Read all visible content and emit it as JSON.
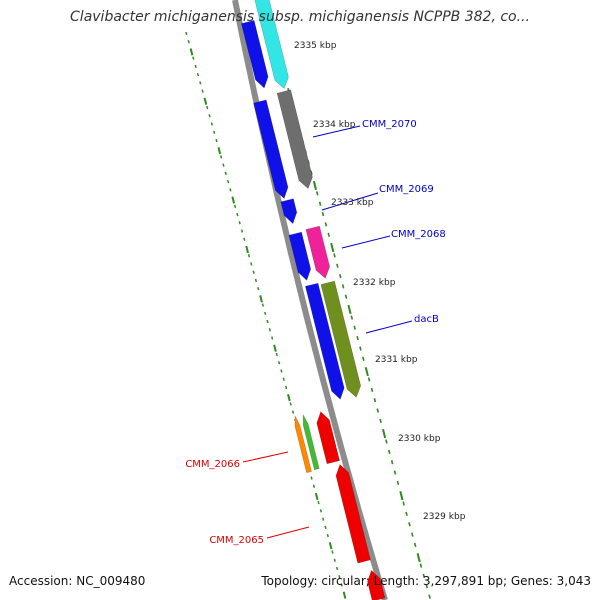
{
  "title": "Clavibacter michiganensis subsp. michiganensis NCPPB 382, co...",
  "footer": {
    "accession": "Accession: NC_009480",
    "summary": "Topology: circular; Length: 3,297,891 bp; Genes: 3,043"
  },
  "colors": {
    "backbone": "#8c8c8c",
    "ruler": "#2e8b1f",
    "strand_plus_gene": "#0000ee",
    "label_blue": "#0000cc",
    "label_red": "#dd0000"
  },
  "ruler_labels": [
    "2335 kbp",
    "2334 kbp",
    "2333 kbp",
    "2332 kbp",
    "2331 kbp",
    "2330 kbp",
    "2329 kbp"
  ],
  "gene_labels": [
    {
      "text": "CMM_2070",
      "color": "#0000cc"
    },
    {
      "text": "CMM_2069",
      "color": "#0000cc"
    },
    {
      "text": "CMM_2068",
      "color": "#0000cc"
    },
    {
      "text": "dacB",
      "color": "#0000cc"
    },
    {
      "text": "CMM_2066",
      "color": "#dd0000"
    },
    {
      "text": "CMM_2065",
      "color": "#dd0000"
    }
  ]
}
